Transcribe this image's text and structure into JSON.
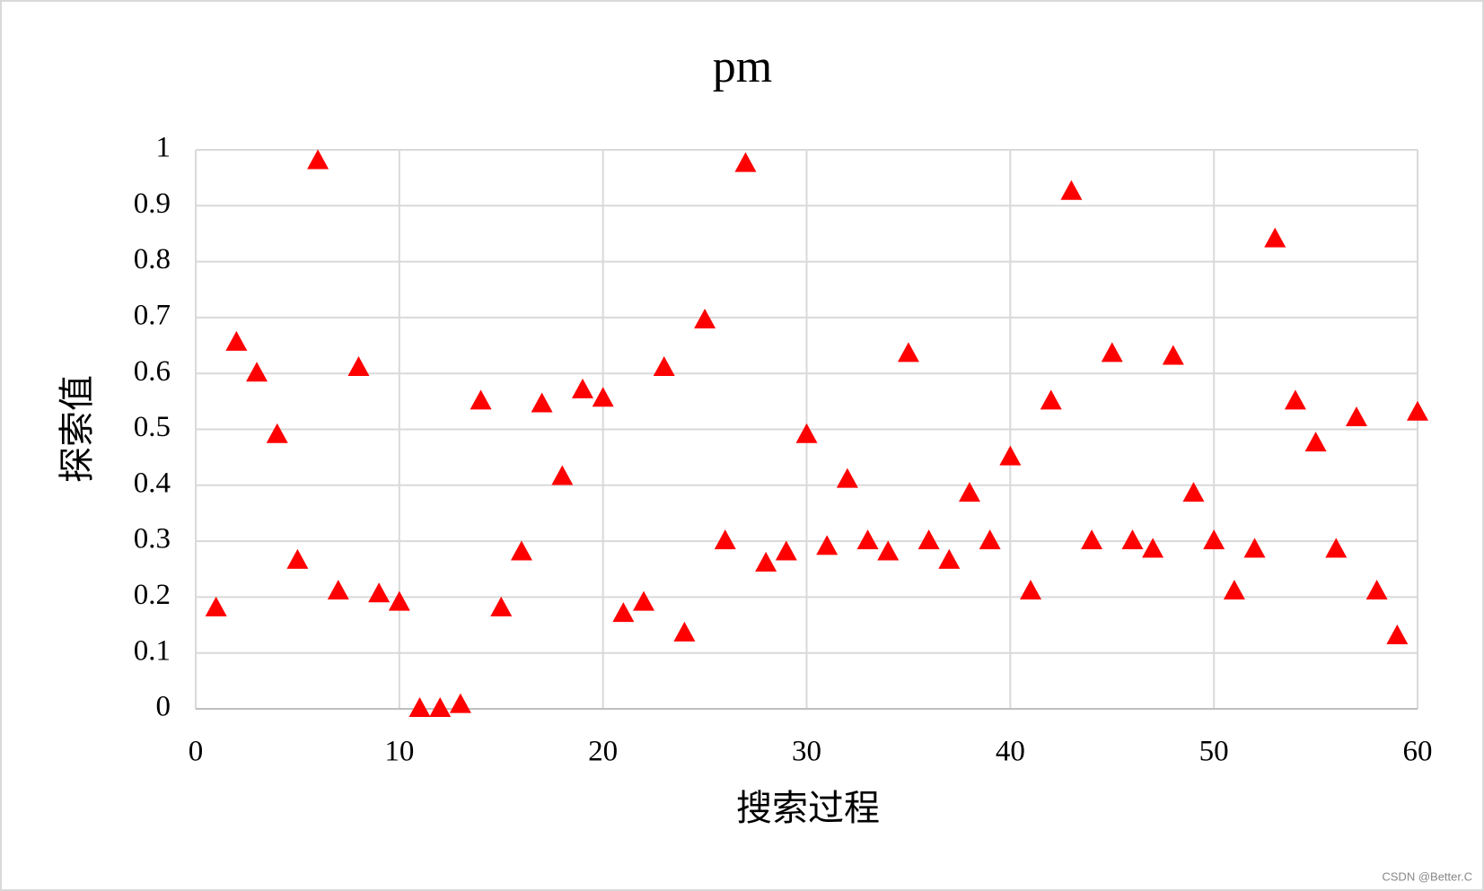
{
  "chart_data": {
    "type": "scatter",
    "title": "pm",
    "x_label": "搜索过程",
    "y_label": "探索值",
    "x": [
      1,
      2,
      3,
      4,
      5,
      6,
      7,
      8,
      9,
      10,
      11,
      12,
      13,
      14,
      15,
      16,
      17,
      18,
      19,
      20,
      21,
      22,
      23,
      24,
      25,
      26,
      27,
      28,
      29,
      30,
      31,
      32,
      33,
      34,
      35,
      36,
      37,
      38,
      39,
      40,
      41,
      42,
      43,
      44,
      45,
      46,
      47,
      48,
      49,
      50,
      51,
      52,
      53,
      54,
      55,
      56,
      57,
      58,
      59,
      60
    ],
    "values": [
      0.18,
      0.655,
      0.6,
      0.49,
      0.265,
      0.98,
      0.21,
      0.61,
      0.205,
      0.19,
      0,
      0,
      0.007,
      0.55,
      0.18,
      0.28,
      0.545,
      0.415,
      0.57,
      0.555,
      0.17,
      0.19,
      0.61,
      0.135,
      0.695,
      0.3,
      0.975,
      0.26,
      0.28,
      0.49,
      0.29,
      0.41,
      0.3,
      0.28,
      0.635,
      0.3,
      0.265,
      0.385,
      0.3,
      0.45,
      0.21,
      0.55,
      0.925,
      0.3,
      0.635,
      0.3,
      0.285,
      0.63,
      0.385,
      0.3,
      0.21,
      0.285,
      0.84,
      0.55,
      0.475,
      0.285,
      0.52,
      0.21,
      0.13,
      0.53
    ],
    "color": "#ff0000",
    "marker": "triangle",
    "xlim": [
      0,
      60
    ],
    "xticks": [
      0,
      10,
      20,
      30,
      40,
      50,
      60
    ],
    "ylim": [
      0,
      1
    ],
    "yticks": [
      0,
      0.1,
      0.2,
      0.3,
      0.4,
      0.5,
      0.6,
      0.7,
      0.8,
      0.9,
      1
    ],
    "grid": true
  },
  "watermark": "CSDN @Better.C"
}
